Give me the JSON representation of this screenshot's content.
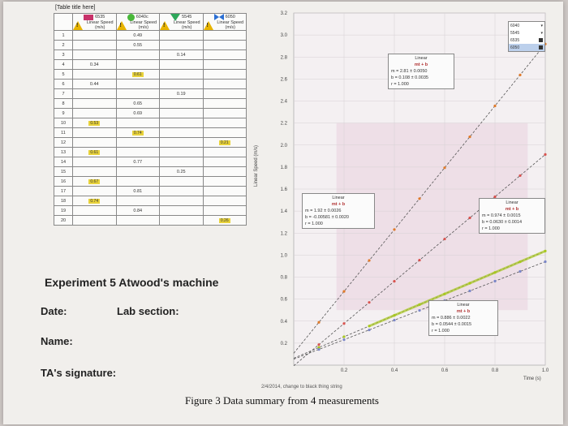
{
  "table": {
    "title": "[Table title here]",
    "columns": [
      {
        "name": "6535",
        "color": "#c8326a",
        "shape": "square",
        "label": "Linear Speed (m/s)"
      },
      {
        "name": "6040c",
        "color": "#49b83a",
        "shape": "circle",
        "label": "Linear Speed (m/s)"
      },
      {
        "name": "5545",
        "color": "#2ea85a",
        "shape": "triangle",
        "label": "Linear Speed (m/s)"
      },
      {
        "name": "6050",
        "color": "#2b6fd4",
        "shape": "bowtie",
        "label": "Linear Speed (m/s)"
      }
    ],
    "rows": [
      {
        "i": "1",
        "c1": "",
        "c2": "0.49",
        "c3": "",
        "c4": ""
      },
      {
        "i": "2",
        "c1": "",
        "c2": "0.55",
        "c3": "",
        "c4": ""
      },
      {
        "i": "3",
        "c1": "",
        "c2": "",
        "c3": "0.14",
        "c4": ""
      },
      {
        "i": "4",
        "c1": "0.34",
        "c2": "",
        "c3": "",
        "c4": ""
      },
      {
        "i": "5",
        "c1": "",
        "c2": "0.61",
        "c3": "",
        "c4": ""
      },
      {
        "i": "6",
        "c1": "0.44",
        "c2": "",
        "c3": "",
        "c4": ""
      },
      {
        "i": "7",
        "c1": "",
        "c2": "",
        "c3": "0.19",
        "c4": ""
      },
      {
        "i": "8",
        "c1": "",
        "c2": "0.65",
        "c3": "",
        "c4": ""
      },
      {
        "i": "9",
        "c1": "",
        "c2": "0.69",
        "c3": "",
        "c4": ""
      },
      {
        "i": "10",
        "c1": "0.53",
        "c2": "",
        "c3": "",
        "c4": ""
      },
      {
        "i": "11",
        "c1": "",
        "c2": "0.74",
        "c3": "",
        "c4": ""
      },
      {
        "i": "12",
        "c1": "",
        "c2": "",
        "c3": "",
        "c4": "0.21"
      },
      {
        "i": "13",
        "c1": "0.61",
        "c2": "",
        "c3": "",
        "c4": ""
      },
      {
        "i": "14",
        "c1": "",
        "c2": "0.77",
        "c3": "",
        "c4": ""
      },
      {
        "i": "15",
        "c1": "",
        "c2": "",
        "c3": "0.25",
        "c4": ""
      },
      {
        "i": "16",
        "c1": "0.67",
        "c2": "",
        "c3": "",
        "c4": ""
      },
      {
        "i": "17",
        "c1": "",
        "c2": "0.81",
        "c3": "",
        "c4": ""
      },
      {
        "i": "18",
        "c1": "0.74",
        "c2": "",
        "c3": "",
        "c4": ""
      },
      {
        "i": "19",
        "c1": "",
        "c2": "0.84",
        "c3": "",
        "c4": ""
      },
      {
        "i": "20",
        "c1": "",
        "c2": "",
        "c3": "",
        "c4": "0.26"
      }
    ],
    "highlighted": [
      "0.53",
      "0.61",
      "0.67",
      "0.74",
      "0.21",
      "0.26"
    ]
  },
  "form": {
    "title": "Experiment 5  Atwood's machine",
    "date_label": "Date:",
    "lab_section_label": "Lab section:",
    "name_label": "Name:",
    "ta_label": "TA's signature:"
  },
  "figure": {
    "caption": "Figure 3  Data summary from 4 measurements",
    "annotation": "2/4/2014, change to black thing string",
    "xlabel": "Time (s)",
    "ylabel": "Linear Speed (m/s)",
    "fits": [
      {
        "name": "Linear",
        "formula": "mt + b",
        "m": "m = 2.81  ± 0.0050",
        "b": "b = 0.108 ± 0.0035",
        "r": "r = 1.000"
      },
      {
        "name": "Linear",
        "formula": "mt + b",
        "m": "m = 1.92    ± 0.0026",
        "b": "b = -0.00581 ± 0.0020",
        "r": "r = 1.000"
      },
      {
        "name": "Linear",
        "formula": "mt + b",
        "m": "m = 0.974  ± 0.0015",
        "b": "b = 0.0630 ± 0.0014",
        "r": "r = 1.000"
      },
      {
        "name": "Linear",
        "formula": "mt + b",
        "m": "m = 0.886  ± 0.0022",
        "b": "b = 0.0544 ± 0.0015",
        "r": "r = 1.000"
      }
    ],
    "legend": [
      "6040",
      "5545",
      "6535",
      "6050"
    ]
  },
  "chart_data": {
    "type": "scatter",
    "xlabel": "Time (s)",
    "ylabel": "Linear Speed (m/s)",
    "xlim": [
      0,
      1.0
    ],
    "ylim": [
      0,
      3.2
    ],
    "xticks": [
      "0.2",
      "0.4",
      "0.6",
      "0.8",
      "1.0"
    ],
    "yticks": [
      "0.2",
      "0.4",
      "0.6",
      "0.8",
      "1.0",
      "1.2",
      "1.4",
      "1.6",
      "1.8",
      "2.0",
      "2.2",
      "2.4",
      "2.6",
      "2.8",
      "3.0",
      "3.2"
    ],
    "series": [
      {
        "name": "6535",
        "color": "#e07a2a",
        "slope": 2.81,
        "intercept": 0.108,
        "x": [
          0.1,
          0.2,
          0.3,
          0.4,
          0.5,
          0.6,
          0.7,
          0.8,
          0.9,
          1.0
        ]
      },
      {
        "name": "5545",
        "color": "#d9534f",
        "slope": 1.92,
        "intercept": -0.00581,
        "x": [
          0.1,
          0.2,
          0.3,
          0.4,
          0.5,
          0.6,
          0.7,
          0.8,
          0.9,
          1.0
        ]
      },
      {
        "name": "6040",
        "color": "#a8c81e",
        "slope": 0.974,
        "intercept": 0.063,
        "x": [
          0.1,
          0.2,
          0.3,
          0.4,
          0.5,
          0.6,
          0.7,
          0.8,
          0.9,
          1.0
        ]
      },
      {
        "name": "6050",
        "color": "#7a86c8",
        "slope": 0.886,
        "intercept": 0.0544,
        "x": [
          0.1,
          0.2,
          0.3,
          0.4,
          0.5,
          0.6,
          0.7,
          0.8,
          0.9,
          1.0
        ]
      }
    ]
  }
}
